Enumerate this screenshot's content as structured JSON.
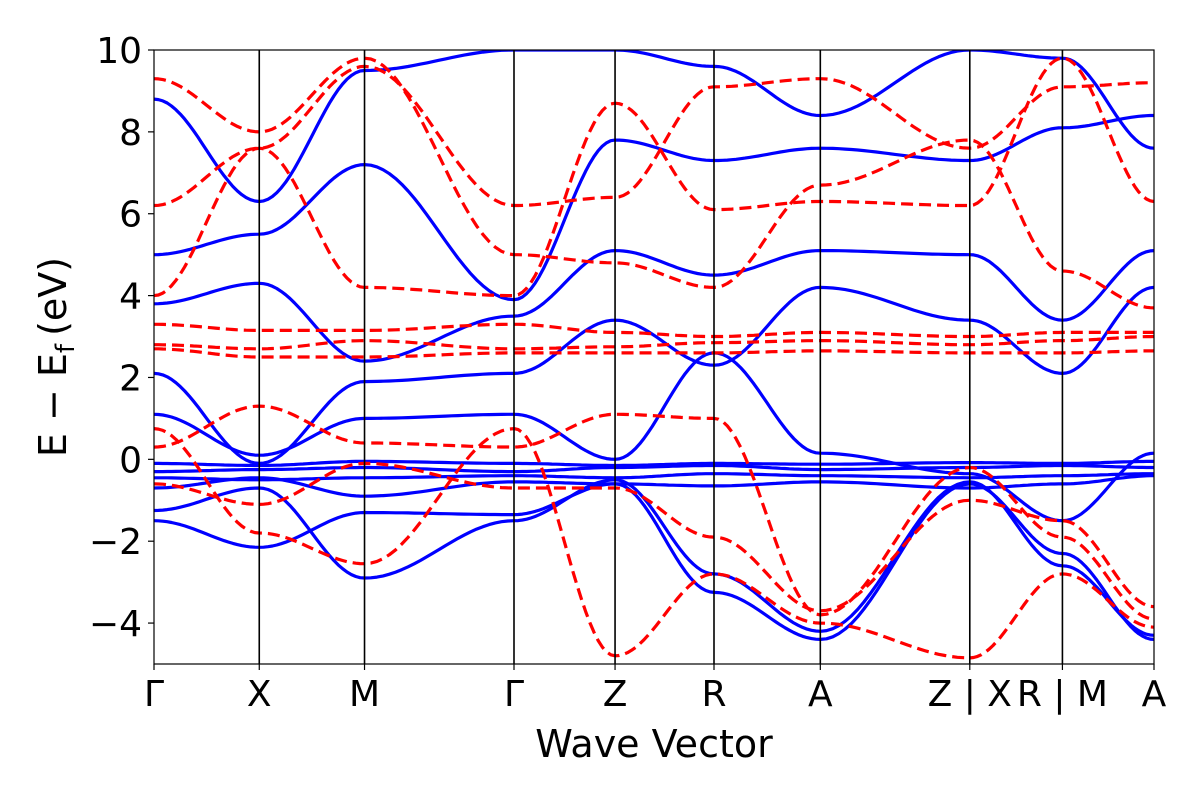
{
  "chart_data": {
    "type": "line",
    "title": "",
    "xlabel": "Wave Vector",
    "ylabel": "E − E",
    "ylabel_subscript": "f",
    "ylabel_unit": "(eV)",
    "ylim": [
      -5,
      10
    ],
    "yticks": [
      {
        "value": -4,
        "label": "−4"
      },
      {
        "value": -2,
        "label": "−2"
      },
      {
        "value": 0,
        "label": "0"
      },
      {
        "value": 2,
        "label": "2"
      },
      {
        "value": 4,
        "label": "4"
      },
      {
        "value": 6,
        "label": "6"
      },
      {
        "value": 8,
        "label": "8"
      },
      {
        "value": 10,
        "label": "10"
      }
    ],
    "xlim": [
      0,
      9.5
    ],
    "kpoints": [
      {
        "x": 0,
        "label": "Γ"
      },
      {
        "x": 1,
        "label": "X"
      },
      {
        "x": 2,
        "label": "M"
      },
      {
        "x": 3.42,
        "label": "Γ"
      },
      {
        "x": 4.38,
        "label": "Z"
      },
      {
        "x": 5.32,
        "label": "R"
      },
      {
        "x": 6.33,
        "label": "A"
      },
      {
        "x": 7.75,
        "label": "Z | X"
      },
      {
        "x": 8.63,
        "label": "R | M"
      },
      {
        "x": 9.5,
        "label": "A"
      }
    ],
    "grid": false,
    "colors": {
      "series_a": "#0000ff",
      "series_b": "#ff0000",
      "vlines": "#000000"
    },
    "series": [
      {
        "style": "solid",
        "color": "#0000ff",
        "bands": [
          {
            "x": [
              0,
              1,
              2,
              3.42,
              4.38,
              5.32,
              6.33,
              7.75,
              8.63,
              9.5
            ],
            "y": [
              -0.1,
              -0.15,
              -0.05,
              -0.1,
              -0.15,
              -0.1,
              -0.12,
              -0.08,
              -0.1,
              -0.05
            ]
          },
          {
            "x": [
              0,
              1,
              2,
              3.42,
              4.38,
              5.32,
              6.33,
              7.75,
              8.63,
              9.5
            ],
            "y": [
              -0.3,
              -0.25,
              -0.2,
              -0.3,
              -0.2,
              -0.15,
              -0.25,
              -0.2,
              -0.15,
              -0.2
            ]
          },
          {
            "x": [
              0,
              1,
              2,
              3.42,
              4.38,
              5.32,
              6.33,
              7.75,
              8.63,
              9.5
            ],
            "y": [
              -0.45,
              -0.5,
              -0.45,
              -0.4,
              -0.45,
              -0.35,
              -0.4,
              -0.45,
              -0.4,
              -0.35
            ]
          },
          {
            "x": [
              0,
              1,
              2,
              3.42,
              4.38,
              5.32,
              6.33,
              7.75,
              8.63,
              9.5
            ],
            "y": [
              -0.7,
              -0.45,
              -0.9,
              -0.55,
              -0.6,
              -0.65,
              -0.55,
              -0.7,
              -0.6,
              -0.4
            ]
          },
          {
            "x": [
              0,
              1,
              2,
              3.42,
              4.38,
              5.32,
              6.33,
              7.75,
              8.63,
              9.5
            ],
            "y": [
              -1.5,
              -2.15,
              -1.3,
              -1.35,
              -0.6,
              -3.25,
              -4.4,
              -0.6,
              -2.3,
              -4.4
            ]
          },
          {
            "x": [
              0,
              1,
              2,
              3.42,
              4.38,
              5.32,
              6.33,
              7.75,
              8.63,
              9.5
            ],
            "y": [
              1.1,
              0.1,
              1.0,
              1.1,
              0.0,
              2.6,
              0.15,
              -0.35,
              -1.5,
              0.15
            ]
          },
          {
            "x": [
              0,
              1,
              2,
              3.42,
              4.38,
              5.32,
              6.33,
              7.75,
              8.63,
              9.5
            ],
            "y": [
              2.1,
              -0.1,
              1.9,
              2.1,
              3.4,
              2.3,
              4.2,
              3.4,
              2.1,
              4.2
            ]
          },
          {
            "x": [
              0,
              1,
              2,
              3.42,
              4.38,
              5.32,
              6.33,
              7.75,
              8.63,
              9.5
            ],
            "y": [
              3.8,
              4.3,
              2.4,
              3.5,
              5.1,
              4.5,
              5.1,
              5.0,
              3.4,
              5.1
            ]
          },
          {
            "x": [
              0,
              1,
              2,
              3.42,
              4.38,
              5.32,
              6.33,
              7.75,
              8.63,
              9.5
            ],
            "y": [
              5.0,
              5.5,
              7.2,
              3.9,
              7.8,
              7.3,
              7.6,
              7.3,
              8.1,
              8.4
            ]
          },
          {
            "x": [
              0,
              1,
              2,
              3.42,
              4.38,
              5.32,
              6.33,
              7.75,
              8.63,
              9.5
            ],
            "y": [
              8.8,
              6.3,
              9.5,
              10,
              10,
              9.6,
              8.4,
              10,
              9.8,
              7.6
            ]
          },
          {
            "x": [
              0,
              1,
              2,
              3.42,
              4.38,
              5.32,
              6.33,
              7.75,
              8.63,
              9.5
            ],
            "y": [
              -1.25,
              -0.7,
              -2.9,
              -1.5,
              -0.5,
              -2.8,
              -4.2,
              -0.55,
              -2.6,
              -4.3
            ]
          }
        ]
      },
      {
        "style": "dashed",
        "color": "#ff0000",
        "bands": [
          {
            "x": [
              0,
              1,
              2,
              3.42,
              4.38,
              5.32,
              6.33,
              7.75,
              8.63,
              9.5
            ],
            "y": [
              2.7,
              2.5,
              2.5,
              2.6,
              2.6,
              2.6,
              2.65,
              2.6,
              2.6,
              2.65
            ]
          },
          {
            "x": [
              0,
              1,
              2,
              3.42,
              4.38,
              5.32,
              6.33,
              7.75,
              8.63,
              9.5
            ],
            "y": [
              2.8,
              2.7,
              2.9,
              2.7,
              2.75,
              2.85,
              2.9,
              2.8,
              2.9,
              3.0
            ]
          },
          {
            "x": [
              0,
              1,
              2,
              3.42,
              4.38,
              5.32,
              6.33,
              7.75,
              8.63,
              9.5
            ],
            "y": [
              3.3,
              3.15,
              3.15,
              3.3,
              3.1,
              3.0,
              3.1,
              3.0,
              3.1,
              3.1
            ]
          },
          {
            "x": [
              0,
              1,
              2,
              3.42,
              4.38,
              5.32,
              6.33,
              7.75,
              8.63,
              9.5
            ],
            "y": [
              0.75,
              -1.8,
              -2.55,
              0.75,
              -4.8,
              -2.8,
              -4.0,
              -4.85,
              -2.8,
              -4.1
            ]
          },
          {
            "x": [
              0,
              1,
              2,
              3.42,
              4.38,
              5.32,
              6.33,
              7.75,
              8.63,
              9.5
            ],
            "y": [
              0.3,
              1.3,
              0.4,
              0.3,
              1.1,
              1.0,
              -3.8,
              -0.2,
              -1.9,
              -3.9
            ]
          },
          {
            "x": [
              0,
              1,
              2,
              3.42,
              4.38,
              5.32,
              6.33,
              7.75,
              8.63,
              9.5
            ],
            "y": [
              4.0,
              7.6,
              4.2,
              4.0,
              8.7,
              6.1,
              6.3,
              6.2,
              9.8,
              6.3
            ]
          },
          {
            "x": [
              0,
              1,
              2,
              3.42,
              4.38,
              5.32,
              6.33,
              7.75,
              8.63,
              9.5
            ],
            "y": [
              6.2,
              7.6,
              9.6,
              6.2,
              6.4,
              9.1,
              9.3,
              7.6,
              9.1,
              9.2
            ]
          },
          {
            "x": [
              0,
              1,
              2,
              3.42,
              4.38,
              5.32,
              6.33,
              7.75,
              8.63,
              9.5
            ],
            "y": [
              9.3,
              8.0,
              9.8,
              5.0,
              4.8,
              4.2,
              6.7,
              7.8,
              4.6,
              3.7
            ]
          },
          {
            "x": [
              0,
              1,
              2,
              3.42,
              4.38,
              5.32,
              6.33,
              7.75,
              8.63,
              9.5
            ],
            "y": [
              -0.6,
              -1.1,
              -0.1,
              -0.7,
              -0.7,
              -1.9,
              -3.7,
              -1.0,
              -1.5,
              -3.6
            ]
          }
        ]
      }
    ]
  }
}
